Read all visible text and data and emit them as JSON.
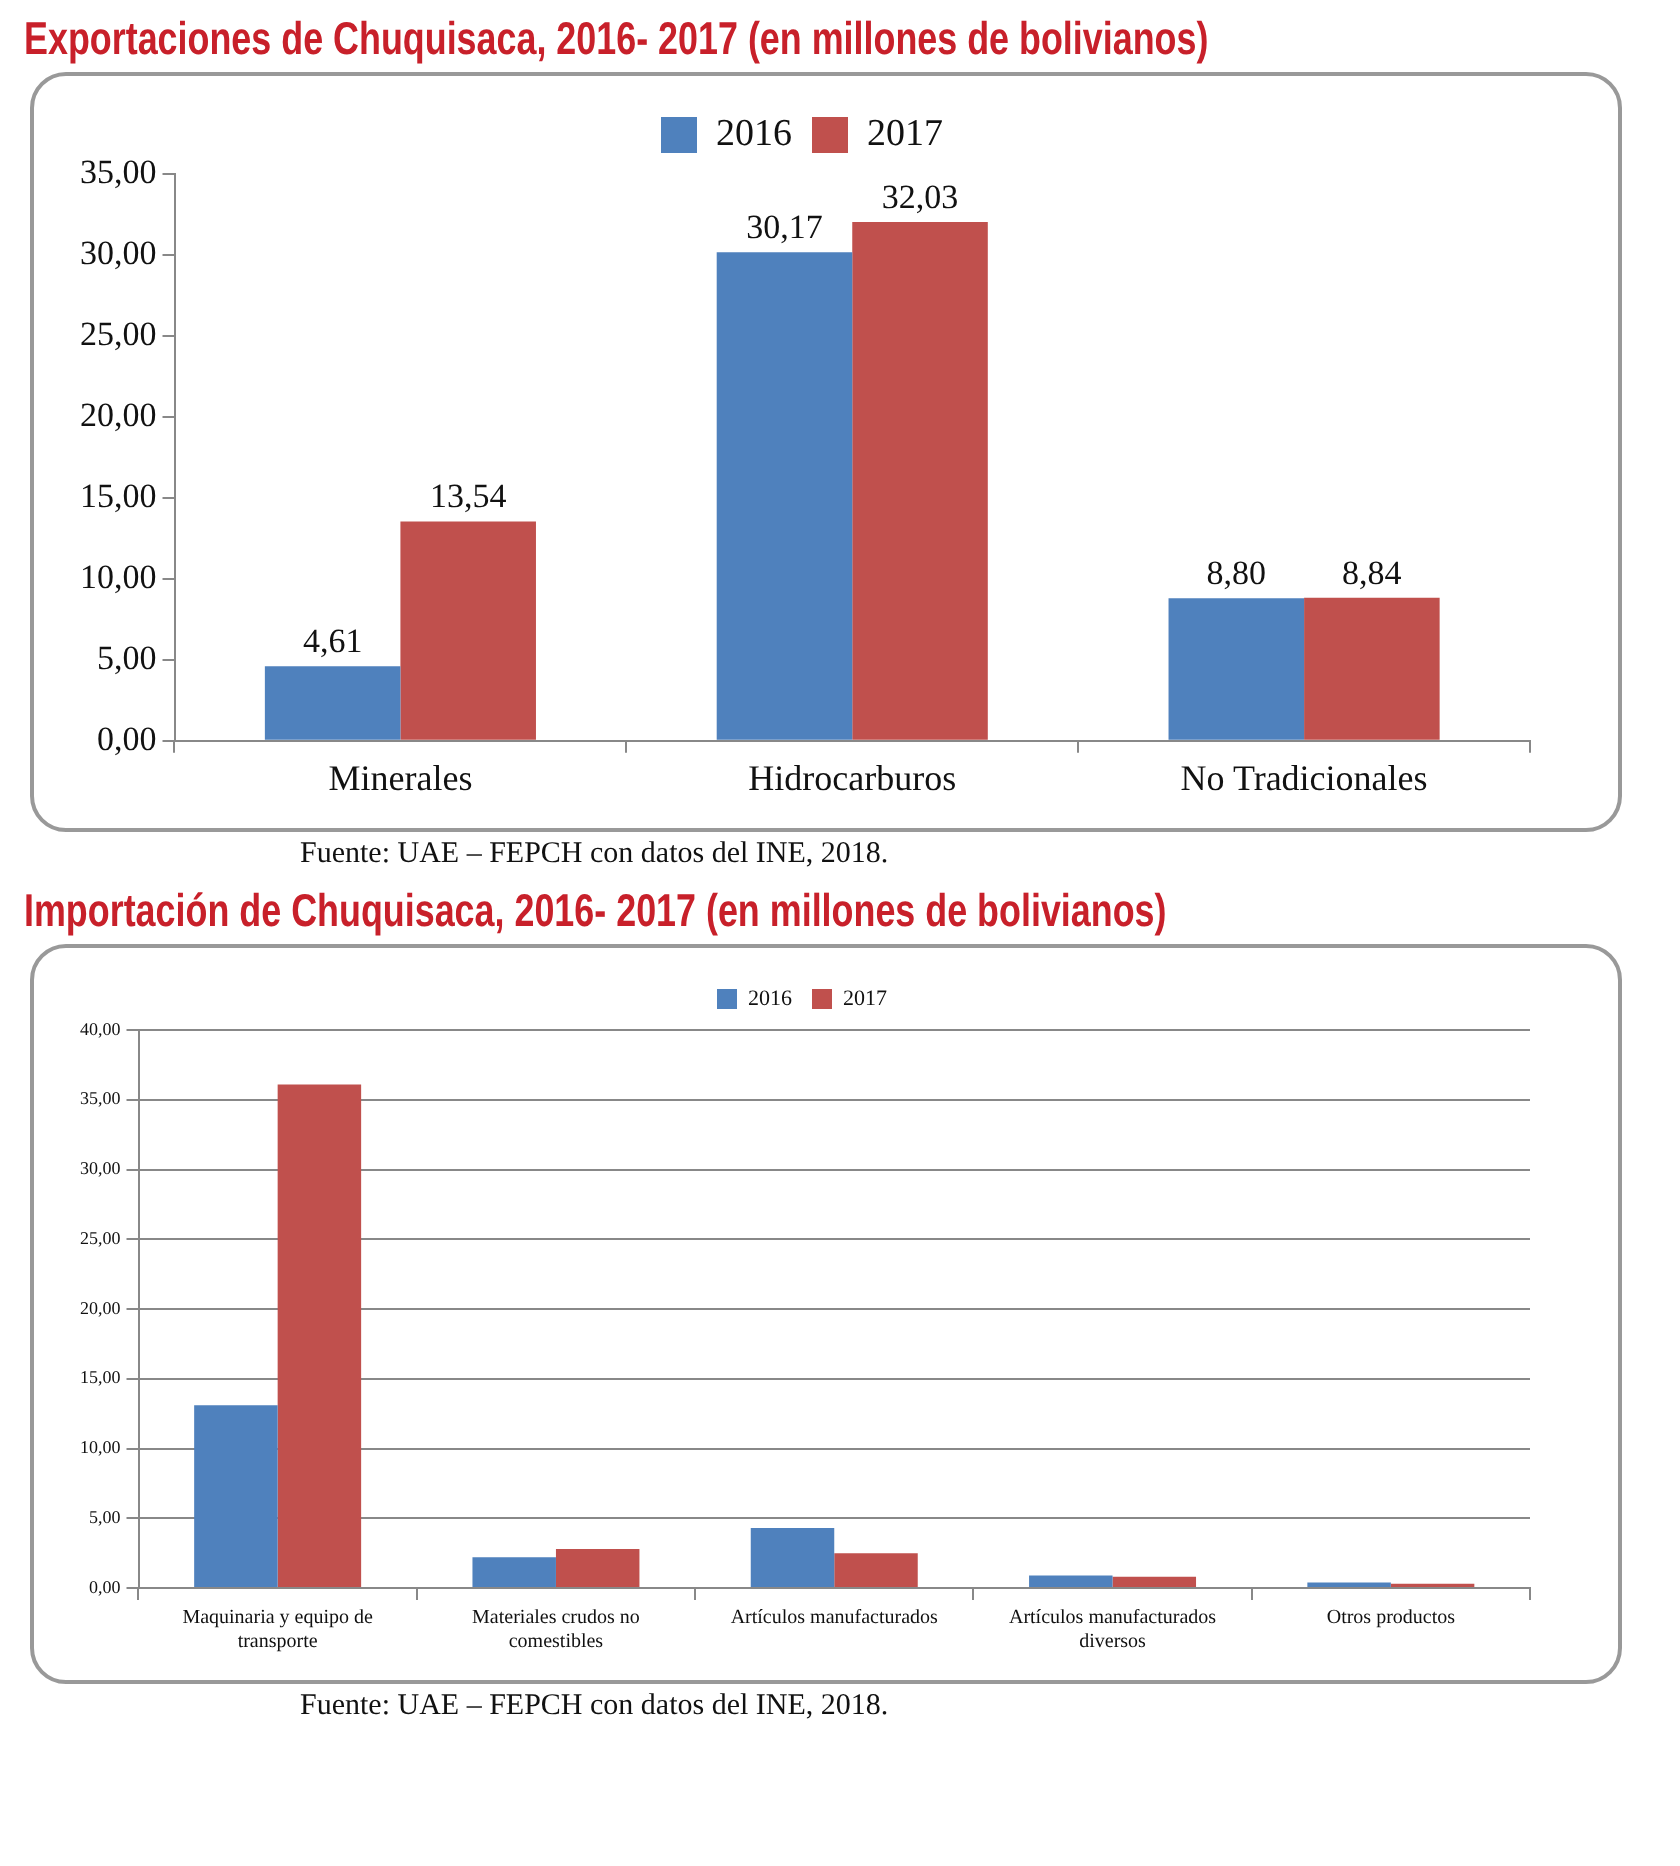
{
  "chart_data": [
    {
      "type": "bar",
      "title": "Exportaciones de Chuquisaca, 2016- 2017 (en millones de bolivianos)",
      "categories": [
        "Minerales",
        "Hidrocarburos",
        "No Tradicionales"
      ],
      "series": [
        {
          "name": "2016",
          "color": "#4f81bd",
          "values": [
            4.61,
            30.17,
            8.8
          ],
          "value_labels": [
            "4,61",
            "30,17",
            "8,80"
          ]
        },
        {
          "name": "2017",
          "color": "#c0504d",
          "values": [
            13.54,
            32.03,
            8.84
          ],
          "value_labels": [
            "13,54",
            "32,03",
            "8,84"
          ]
        }
      ],
      "ylim": [
        0,
        35
      ],
      "yticks": [
        {
          "value": 0,
          "label": "0,00"
        },
        {
          "value": 5,
          "label": "5,00"
        },
        {
          "value": 10,
          "label": "10,00"
        },
        {
          "value": 15,
          "label": "15,00"
        },
        {
          "value": 20,
          "label": "20,00"
        },
        {
          "value": 25,
          "label": "25,00"
        },
        {
          "value": 30,
          "label": "30,00"
        },
        {
          "value": 35,
          "label": "35,00"
        }
      ],
      "grid": false,
      "legend": "top",
      "annotations": [
        "Fuente: UAE – FEPCH con datos del INE, 2018."
      ]
    },
    {
      "type": "bar",
      "title": "Importación de Chuquisaca, 2016- 2017 (en millones de bolivianos)",
      "categories": [
        "Maquinaria y equipo de transporte",
        "Materiales crudos no comestibles",
        "Artículos manufacturados",
        "Artículos manufacturados diversos",
        "Otros productos"
      ],
      "series": [
        {
          "name": "2016",
          "color": "#4f81bd",
          "values": [
            13.1,
            2.2,
            4.3,
            0.9,
            0.4
          ]
        },
        {
          "name": "2017",
          "color": "#c0504d",
          "values": [
            36.1,
            2.8,
            2.5,
            0.8,
            0.3
          ]
        }
      ],
      "ylim": [
        0,
        40
      ],
      "yticks": [
        {
          "value": 0,
          "label": "0,00"
        },
        {
          "value": 5,
          "label": "5,00"
        },
        {
          "value": 10,
          "label": "10,00"
        },
        {
          "value": 15,
          "label": "15,00"
        },
        {
          "value": 20,
          "label": "20,00"
        },
        {
          "value": 25,
          "label": "25,00"
        },
        {
          "value": 30,
          "label": "30,00"
        },
        {
          "value": 35,
          "label": "35,00"
        },
        {
          "value": 40,
          "label": "40,00"
        }
      ],
      "grid": "y",
      "legend": "top",
      "annotations": [
        "Fuente: UAE – FEPCH con datos del INE, 2018."
      ]
    }
  ]
}
